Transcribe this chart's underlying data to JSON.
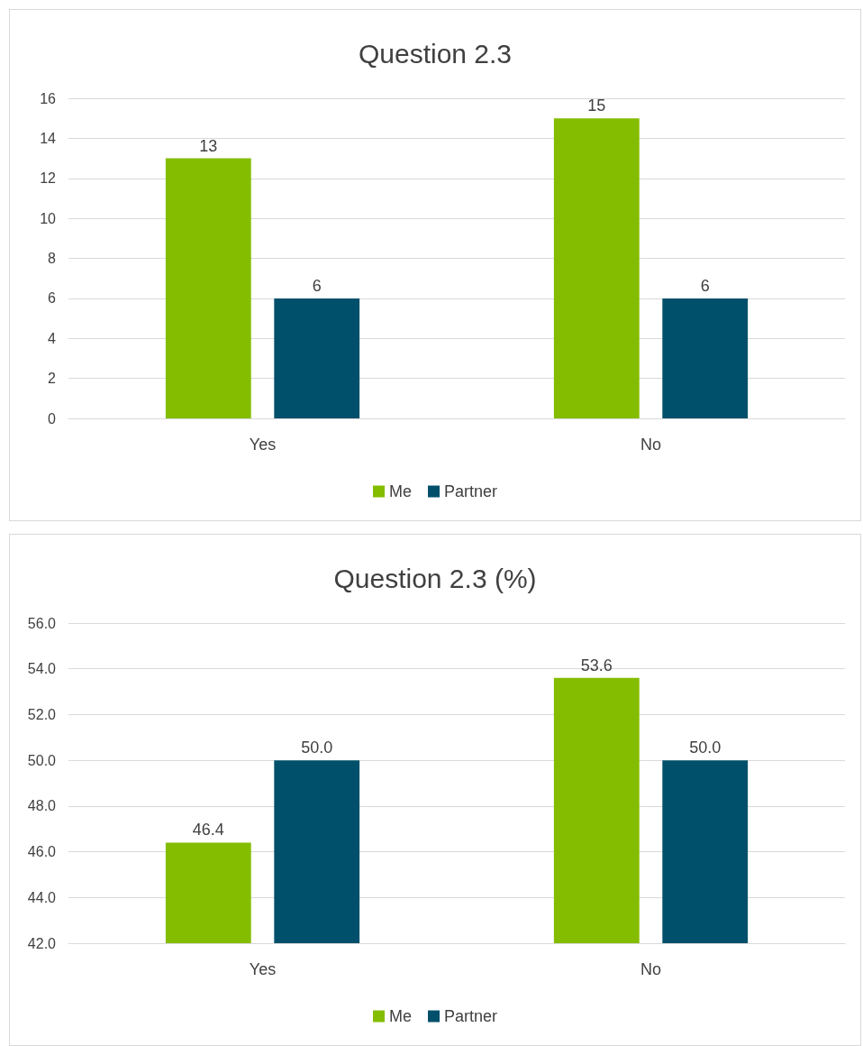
{
  "chart_data": [
    {
      "type": "bar",
      "title": "Question 2.3",
      "categories": [
        "Yes",
        "No"
      ],
      "series": [
        {
          "name": "Me",
          "color": "#84bd00",
          "values": [
            13,
            15
          ]
        },
        {
          "name": "Partner",
          "color": "#00506b",
          "values": [
            6,
            6
          ]
        }
      ],
      "ylim": [
        0,
        16
      ],
      "yticks": [
        0,
        2,
        4,
        6,
        8,
        10,
        12,
        14,
        16
      ],
      "grid": "y",
      "legend": "bottom",
      "data_labels": true
    },
    {
      "type": "bar",
      "title": "Question 2.3 (%)",
      "categories": [
        "Yes",
        "No"
      ],
      "series": [
        {
          "name": "Me",
          "color": "#84bd00",
          "values": [
            46.4,
            53.6
          ],
          "value_labels": [
            "46.4",
            "53.6"
          ]
        },
        {
          "name": "Partner",
          "color": "#00506b",
          "values": [
            50,
            50
          ],
          "value_labels": [
            "50.0",
            "50.0"
          ]
        }
      ],
      "ylim": [
        42,
        56
      ],
      "yticks": [
        {
          "value": 42,
          "label": "42.0"
        },
        {
          "value": 44,
          "label": "44.0"
        },
        {
          "value": 46,
          "label": "46.0"
        },
        {
          "value": 48,
          "label": "48.0"
        },
        {
          "value": 50,
          "label": "50.0"
        },
        {
          "value": 52,
          "label": "52.0"
        },
        {
          "value": 54,
          "label": "54.0"
        },
        {
          "value": 56,
          "label": "56.0"
        }
      ],
      "grid": "y",
      "legend": "bottom"
    }
  ]
}
